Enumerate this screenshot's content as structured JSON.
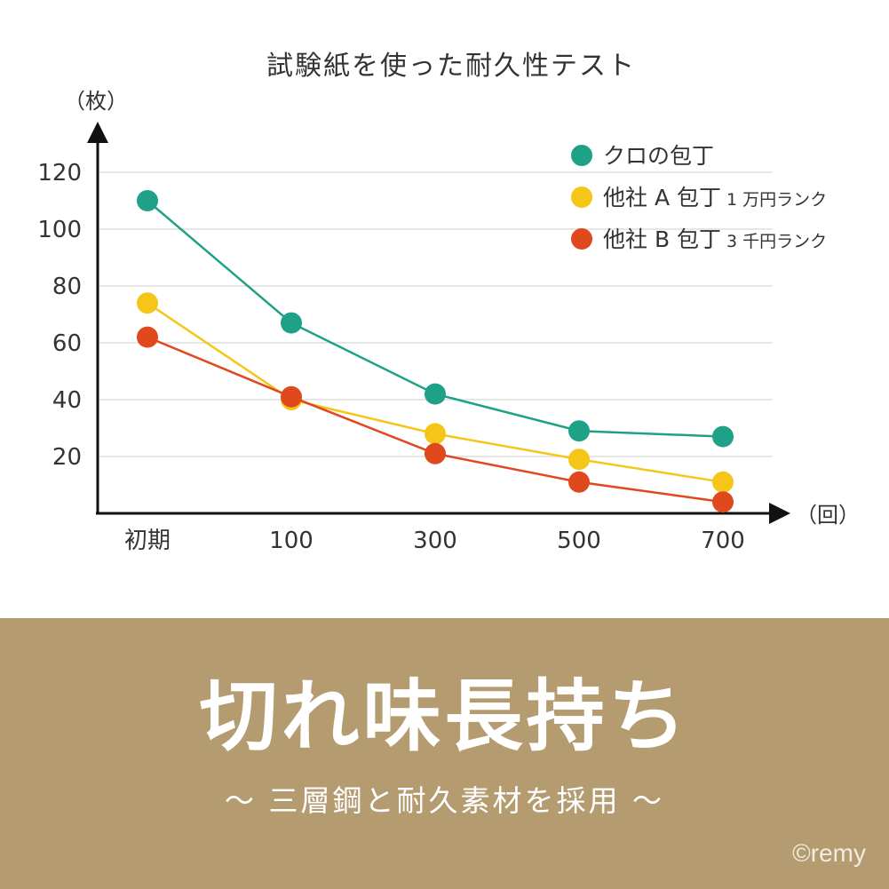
{
  "chart_data": {
    "type": "line",
    "title": "試験紙を使った耐久性テスト",
    "ylabel": "（枚）",
    "xlabel": "（回）",
    "categories": [
      "初期",
      "100",
      "300",
      "500",
      "700"
    ],
    "yticks": [
      "20",
      "40",
      "60",
      "80",
      "100",
      "120"
    ],
    "ylim": [
      0,
      130
    ],
    "grid": true,
    "legend_position": "top-right",
    "series": [
      {
        "name": "クロの包丁",
        "note": "",
        "color": "#1fa187",
        "values": [
          110,
          67,
          42,
          29,
          27
        ]
      },
      {
        "name": "他社 A 包丁",
        "note": "1 万円ランク",
        "color": "#f5c518",
        "values": [
          74,
          40,
          28,
          19,
          11
        ]
      },
      {
        "name": "他社 B 包丁",
        "note": "3 千円ランク",
        "color": "#e0481e",
        "values": [
          62,
          41,
          21,
          11,
          4
        ]
      }
    ]
  },
  "banner": {
    "headline": "切れ味長持ち",
    "subline": "〜 三層鋼と耐久素材を採用 〜",
    "copyright": "©remy",
    "background": "#b49b70"
  }
}
